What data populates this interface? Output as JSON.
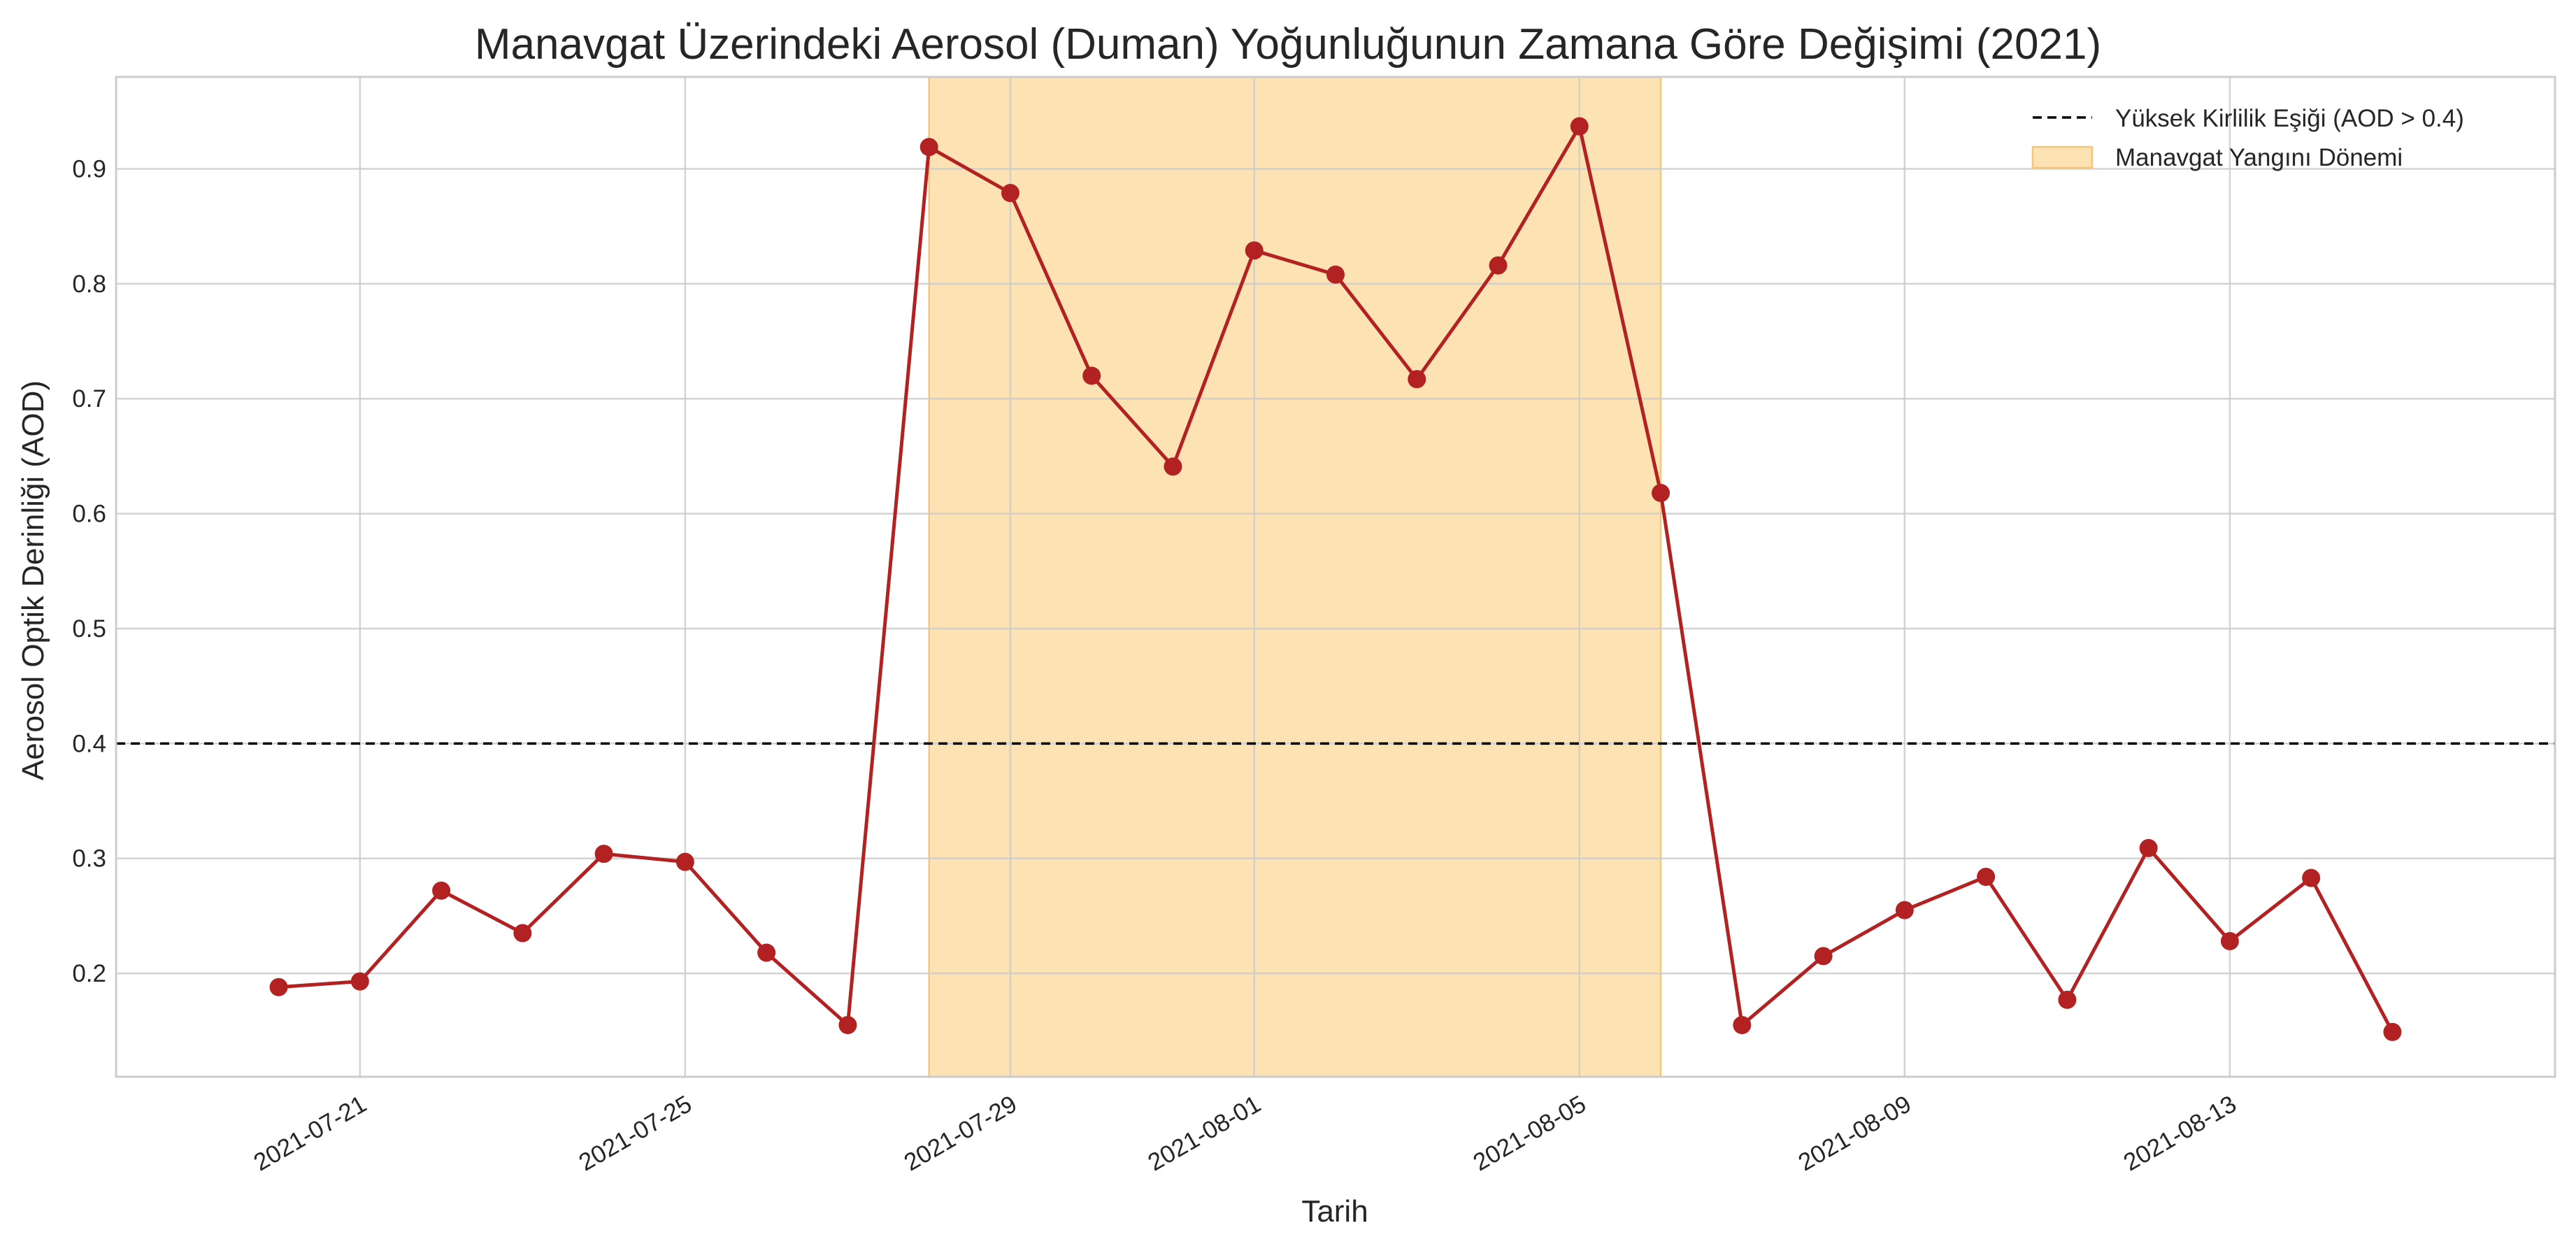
{
  "chart_data": {
    "type": "line",
    "title": "Manavgat Üzerindeki Aerosol (Duman) Yoğunluğunun Zamana Göre Değişimi (2021)",
    "xlabel": "Tarih",
    "ylabel": "Aerosol Optik Derinliği (AOD)",
    "x_ticks": [
      "2021-07-21",
      "2021-07-25",
      "2021-07-29",
      "2021-08-01",
      "2021-08-05",
      "2021-08-09",
      "2021-08-13"
    ],
    "y_ticks": [
      "0.2",
      "0.3",
      "0.4",
      "0.5",
      "0.6",
      "0.7",
      "0.8",
      "0.9"
    ],
    "xlim": [
      "2021-07-18",
      "2021-08-17"
    ],
    "ylim": [
      0.11,
      0.98
    ],
    "grid": true,
    "legend_position": "top-right",
    "series": [
      {
        "color": "#b22222",
        "x": [
          "2021-07-20",
          "2021-07-21",
          "2021-07-22",
          "2021-07-23",
          "2021-07-24",
          "2021-07-25",
          "2021-07-26",
          "2021-07-27",
          "2021-07-28",
          "2021-07-29",
          "2021-07-30",
          "2021-07-31",
          "2021-08-01",
          "2021-08-02",
          "2021-08-03",
          "2021-08-04",
          "2021-08-05",
          "2021-08-06",
          "2021-08-07",
          "2021-08-08",
          "2021-08-09",
          "2021-08-10",
          "2021-08-11",
          "2021-08-12",
          "2021-08-13",
          "2021-08-14",
          "2021-08-15"
        ],
        "values": [
          0.188,
          0.193,
          0.272,
          0.235,
          0.304,
          0.297,
          0.218,
          0.155,
          0.919,
          0.879,
          0.72,
          0.641,
          0.829,
          0.808,
          0.717,
          0.816,
          0.937,
          0.618,
          0.155,
          0.215,
          0.255,
          0.284,
          0.177,
          0.309,
          0.228,
          0.283,
          0.149
        ]
      }
    ],
    "threshold": {
      "value": 0.4,
      "label": "Yüksek Kirlilik Eşiği (AOD > 0.4)",
      "color": "#000000"
    },
    "span": {
      "start": "2021-07-28",
      "end": "2021-08-06",
      "label": "Manavgat Yangını Dönemi",
      "color": "#fde2b3"
    }
  }
}
